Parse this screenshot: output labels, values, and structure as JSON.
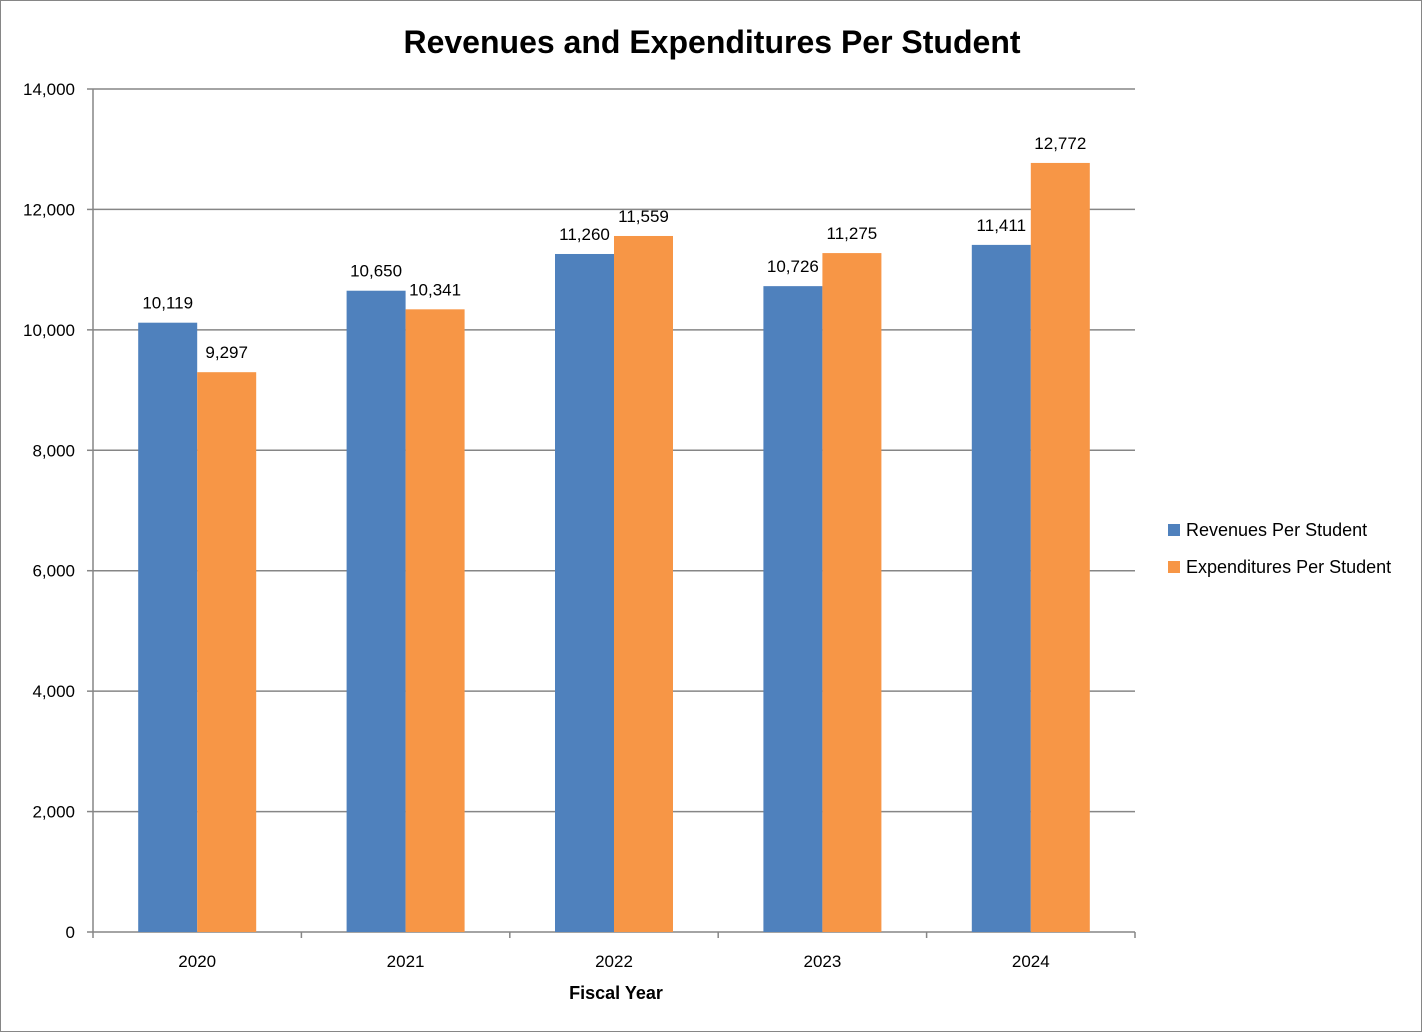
{
  "chart_data": {
    "type": "bar",
    "title": "Revenues and Expenditures Per Student",
    "xlabel": "Fiscal Year",
    "ylabel": "",
    "categories": [
      "2020",
      "2021",
      "2022",
      "2023",
      "2024"
    ],
    "series": [
      {
        "name": "Revenues Per Student",
        "color": "#4F81BD",
        "values": [
          10119,
          10650,
          11260,
          10726,
          11411
        ],
        "labels": [
          "10,119",
          "10,650",
          "11,260",
          "10,726",
          "11,411"
        ]
      },
      {
        "name": "Expenditures Per Student",
        "color": "#F79646",
        "values": [
          9297,
          10341,
          11559,
          11275,
          12772
        ],
        "labels": [
          "9,297",
          "10,341",
          "11,559",
          "11,275",
          "12,772"
        ]
      }
    ],
    "ylim": [
      0,
      14000
    ],
    "yticks": [
      0,
      2000,
      4000,
      6000,
      8000,
      10000,
      12000,
      14000
    ],
    "ytick_labels": [
      "0",
      "2,000",
      "4,000",
      "6,000",
      "8,000",
      "10,000",
      "12,000",
      "14,000"
    ],
    "grid": true,
    "legend_position": "right"
  }
}
